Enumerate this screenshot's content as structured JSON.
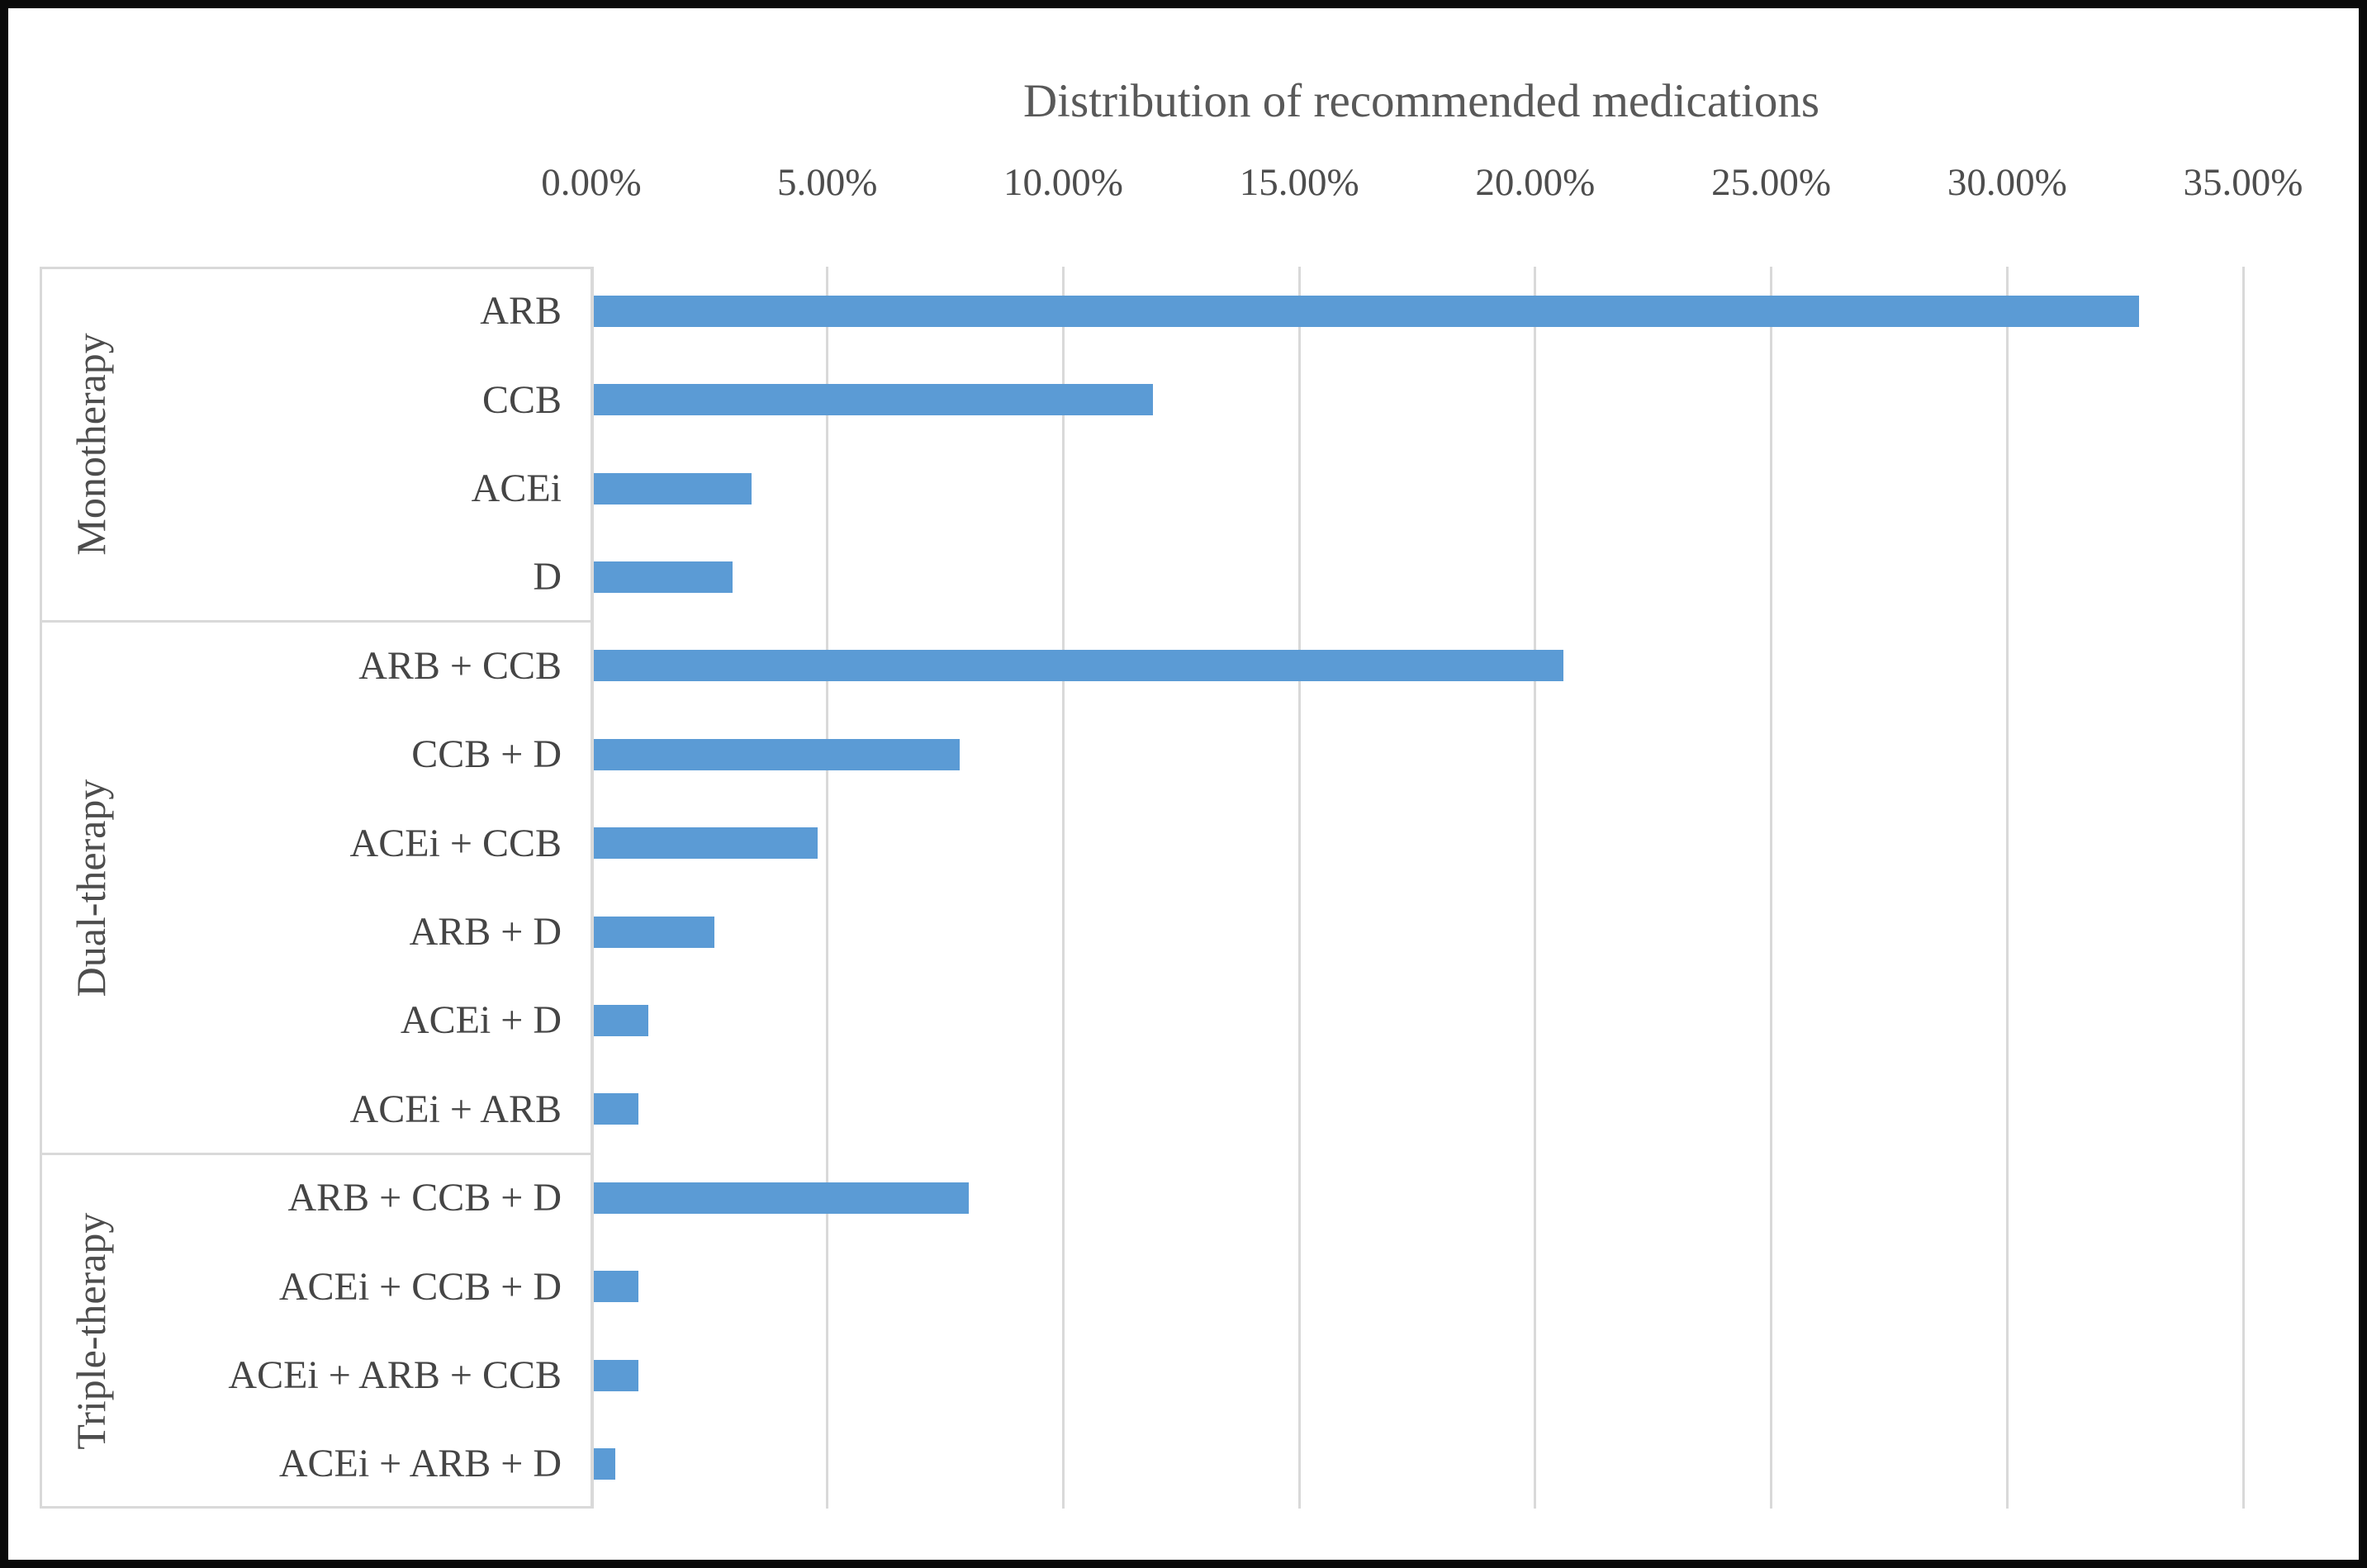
{
  "figure": {
    "title": "Distribution of recommended medications",
    "colors": {
      "bar": "#5B9BD5",
      "gridline": "#D9D9D9",
      "axis_box_border": "#D9D9D9",
      "label_text": "#454545",
      "title_text": "#595959",
      "frame_border": "#0A0A0A",
      "background": "#FFFFFF"
    }
  },
  "chart_data": {
    "type": "bar",
    "orientation": "horizontal",
    "title": "Distribution of recommended medications",
    "xlabel": "",
    "ylabel": "",
    "legend": false,
    "grid": true,
    "x_axis": {
      "position": "top",
      "min": 0,
      "max": 35,
      "tick_step": 5,
      "unit": "%",
      "tick_labels": [
        "0.00%",
        "5.00%",
        "10.00%",
        "15.00%",
        "20.00%",
        "25.00%",
        "30.00%",
        "35.00%"
      ]
    },
    "groups": [
      {
        "label": "Monotherapy",
        "items": [
          {
            "category": "ARB",
            "value": 32.8
          },
          {
            "category": "CCB",
            "value": 11.9
          },
          {
            "category": "ACEi",
            "value": 3.4
          },
          {
            "category": "D",
            "value": 3.0
          }
        ]
      },
      {
        "label": "Dual-therapy",
        "items": [
          {
            "category": "ARB + CCB",
            "value": 20.6
          },
          {
            "category": "CCB + D",
            "value": 7.8
          },
          {
            "category": "ACEi + CCB",
            "value": 4.8
          },
          {
            "category": "ARB + D",
            "value": 2.6
          },
          {
            "category": "ACEi + D",
            "value": 1.2
          },
          {
            "category": "ACEi + ARB",
            "value": 1.0
          }
        ]
      },
      {
        "label": "Triple-therapy",
        "items": [
          {
            "category": "ARB + CCB + D",
            "value": 8.0
          },
          {
            "category": "ACEi + CCB + D",
            "value": 1.0
          },
          {
            "category": "ACEi + ARB + CCB",
            "value": 1.0
          },
          {
            "category": "ACEi + ARB + D",
            "value": 0.5
          }
        ]
      }
    ]
  }
}
